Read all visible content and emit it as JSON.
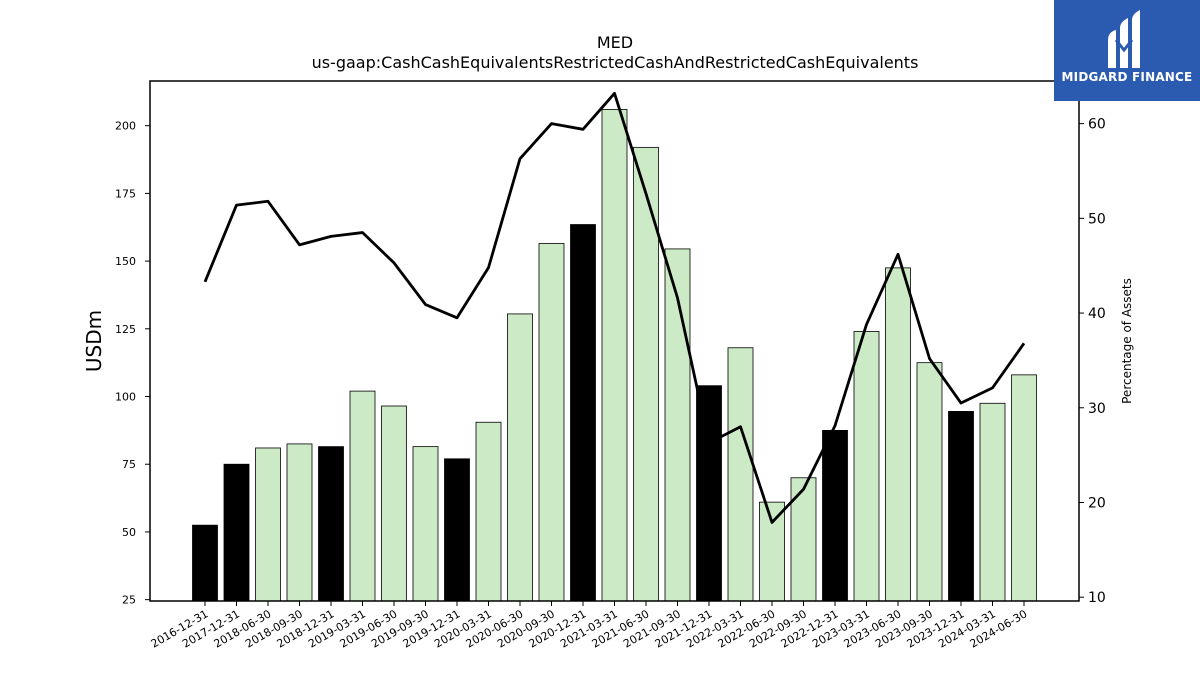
{
  "chart_data": {
    "type": "bar",
    "title": "MED",
    "subtitle": "us-gaap:CashCashEquivalentsRestrictedCashAndRestrictedCashEquivalents",
    "ylabel": "USDm",
    "y2label": "Percentage of Assets",
    "ylim": [
      24.5,
      216.5
    ],
    "y2lim": [
      9.6,
      64.5
    ],
    "yticks": [
      25,
      50,
      75,
      100,
      125,
      150,
      175,
      200
    ],
    "y2ticks": [
      10,
      20,
      30,
      40,
      50,
      60
    ],
    "categories": [
      "2016-12-31",
      "2017-12-31",
      "2018-06-30",
      "2018-09-30",
      "2018-12-31",
      "2019-03-31",
      "2019-06-30",
      "2019-09-30",
      "2019-12-31",
      "2020-03-31",
      "2020-06-30",
      "2020-09-30",
      "2020-12-31",
      "2021-03-31",
      "2021-06-30",
      "2021-09-30",
      "2021-12-31",
      "2022-03-31",
      "2022-06-30",
      "2022-09-30",
      "2022-12-31",
      "2023-03-31",
      "2023-06-30",
      "2023-09-30",
      "2023-12-31",
      "2024-03-31",
      "2024-06-30"
    ],
    "series": [
      {
        "type": "bar",
        "values": [
          52.5,
          75,
          81,
          82.5,
          81.5,
          102,
          96.5,
          81.5,
          77,
          90.5,
          130.5,
          156.5,
          163.5,
          206,
          192,
          154.5,
          104,
          118,
          61,
          70,
          87.5,
          124,
          147.5,
          112.5,
          94.5,
          97.5,
          108
        ],
        "fiscal_year_end": [
          true,
          true,
          false,
          false,
          true,
          false,
          false,
          false,
          true,
          false,
          false,
          false,
          true,
          false,
          false,
          false,
          true,
          false,
          false,
          false,
          true,
          false,
          false,
          false,
          true,
          false,
          false
        ]
      },
      {
        "type": "line",
        "axis": "right",
        "values": [
          43.3,
          51.4,
          51.8,
          47.2,
          48.1,
          48.5,
          45.3,
          40.9,
          39.5,
          44.8,
          56.3,
          60.0,
          59.4,
          63.2,
          52.6,
          41.6,
          26.3,
          28.0,
          17.9,
          21.4,
          28.1,
          38.8,
          46.2,
          35.2,
          30.5,
          32.1,
          36.8
        ]
      }
    ],
    "colors": {
      "fiscal_bar": "#000000",
      "interim_bar": "#cceac5",
      "line": "#000000"
    },
    "grid": false,
    "legend": "none"
  },
  "logo": {
    "text": "MIDGARD FINANCE",
    "color": "#2b5bb0"
  }
}
